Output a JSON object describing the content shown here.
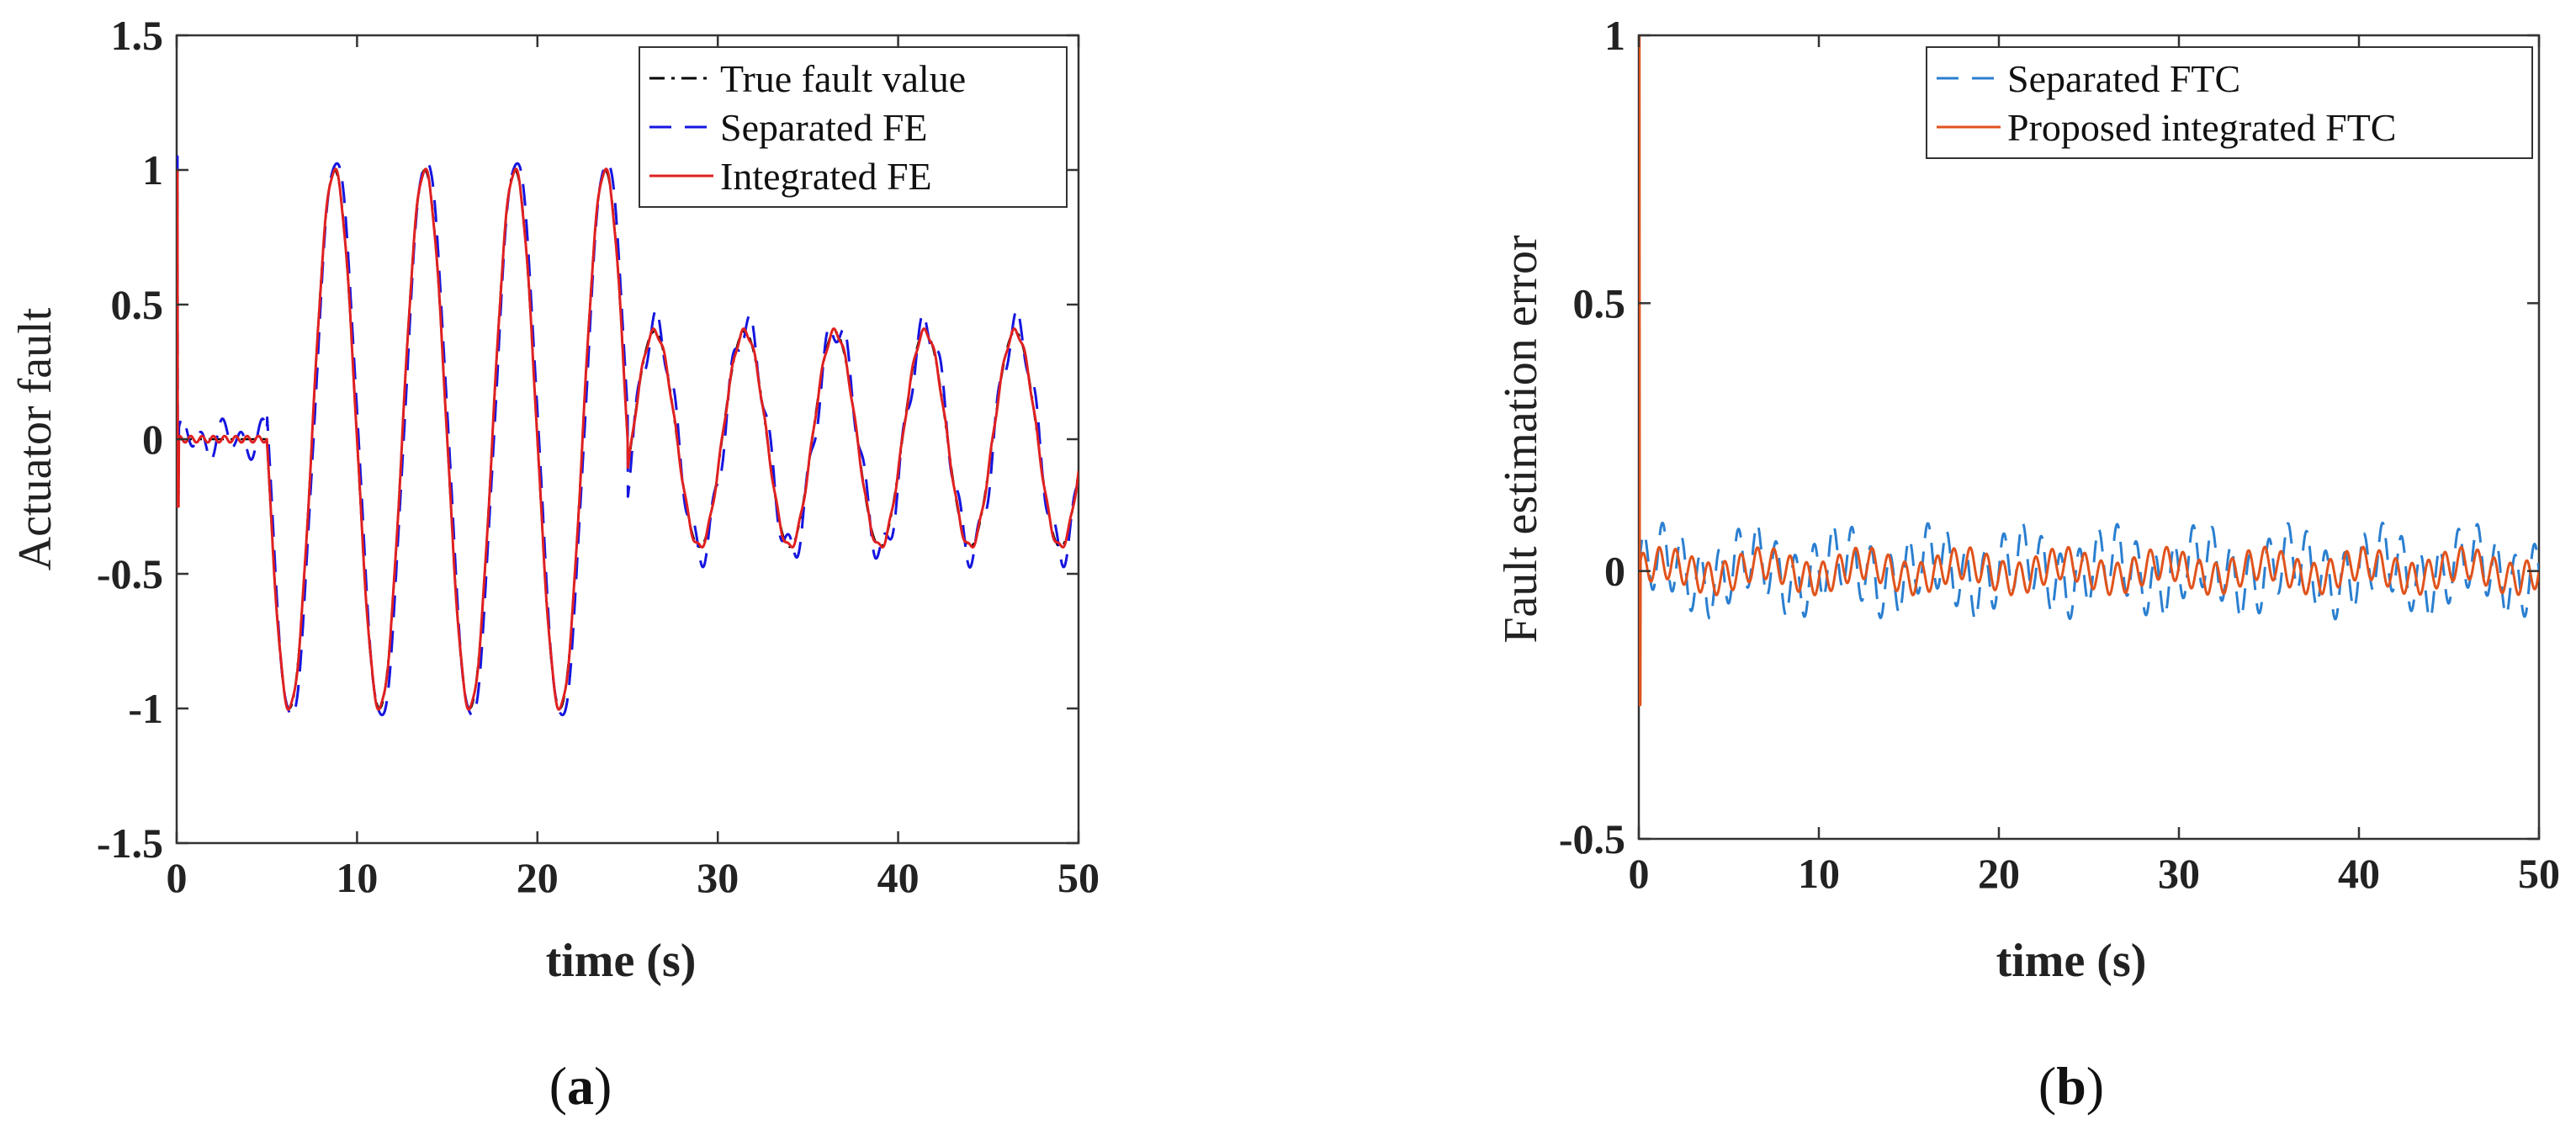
{
  "chart_data": [
    {
      "id": "a",
      "type": "line",
      "panel_label": "a",
      "xlabel": "time (s)",
      "ylabel": "Actuator fault",
      "xlim": [
        0,
        50
      ],
      "ylim": [
        -1.5,
        1.5
      ],
      "xticks": [
        0,
        10,
        20,
        30,
        40,
        50
      ],
      "xtick_labels": [
        "0",
        "10",
        "20",
        "30",
        "40",
        "50"
      ],
      "yticks": [
        -1.5,
        -1,
        -0.5,
        0,
        0.5,
        1,
        1.5
      ],
      "ytick_labels": [
        "-1.5",
        "-1",
        "-0.5",
        "0",
        "0.5",
        "1",
        "1.5"
      ],
      "grid": false,
      "legend_position": "top-right",
      "series": [
        {
          "name": "True fault value",
          "color": "#000000",
          "style": "dashdot",
          "description": "0 for t<5; sin(2*pi*(t-5)/5+pi) amplitude 1 for 5<=t<=25 (period 5 s); amplitude 0.4 sinusoid (period 5 s) for t>25"
        },
        {
          "name": "Separated FE",
          "color": "#1515e0",
          "style": "dashed",
          "description": "Tracks true fault with ~0.05 high-frequency ripple; initial spike to 1.05"
        },
        {
          "name": "Integrated FE",
          "color": "#e02020",
          "style": "solid",
          "description": "Tracks true fault closely; initial spike to 1.0 and -0.25"
        }
      ]
    },
    {
      "id": "b",
      "type": "line",
      "panel_label": "b",
      "xlabel": "time (s)",
      "ylabel": "Fault estimation error",
      "xlim": [
        0,
        50
      ],
      "ylim": [
        -0.5,
        1.0
      ],
      "xticks": [
        0,
        10,
        20,
        30,
        40,
        50
      ],
      "xtick_labels": [
        "0",
        "10",
        "20",
        "30",
        "40",
        "50"
      ],
      "yticks": [
        -0.5,
        0,
        0.5,
        1
      ],
      "ytick_labels": [
        "-0.5",
        "0",
        "0.5",
        "1"
      ],
      "grid": false,
      "legend_position": "top-right",
      "series": [
        {
          "name": "Separated FTC",
          "color": "#2a7fd0",
          "style": "dashed",
          "description": "Oscillates around 0 with amplitude ~0.08"
        },
        {
          "name": "Proposed integrated FTC",
          "color": "#e0531c",
          "style": "solid",
          "description": "Initial spike to 1.03 and -0.25 near t=0, then oscillates around 0 with amplitude ~0.04"
        }
      ]
    }
  ]
}
